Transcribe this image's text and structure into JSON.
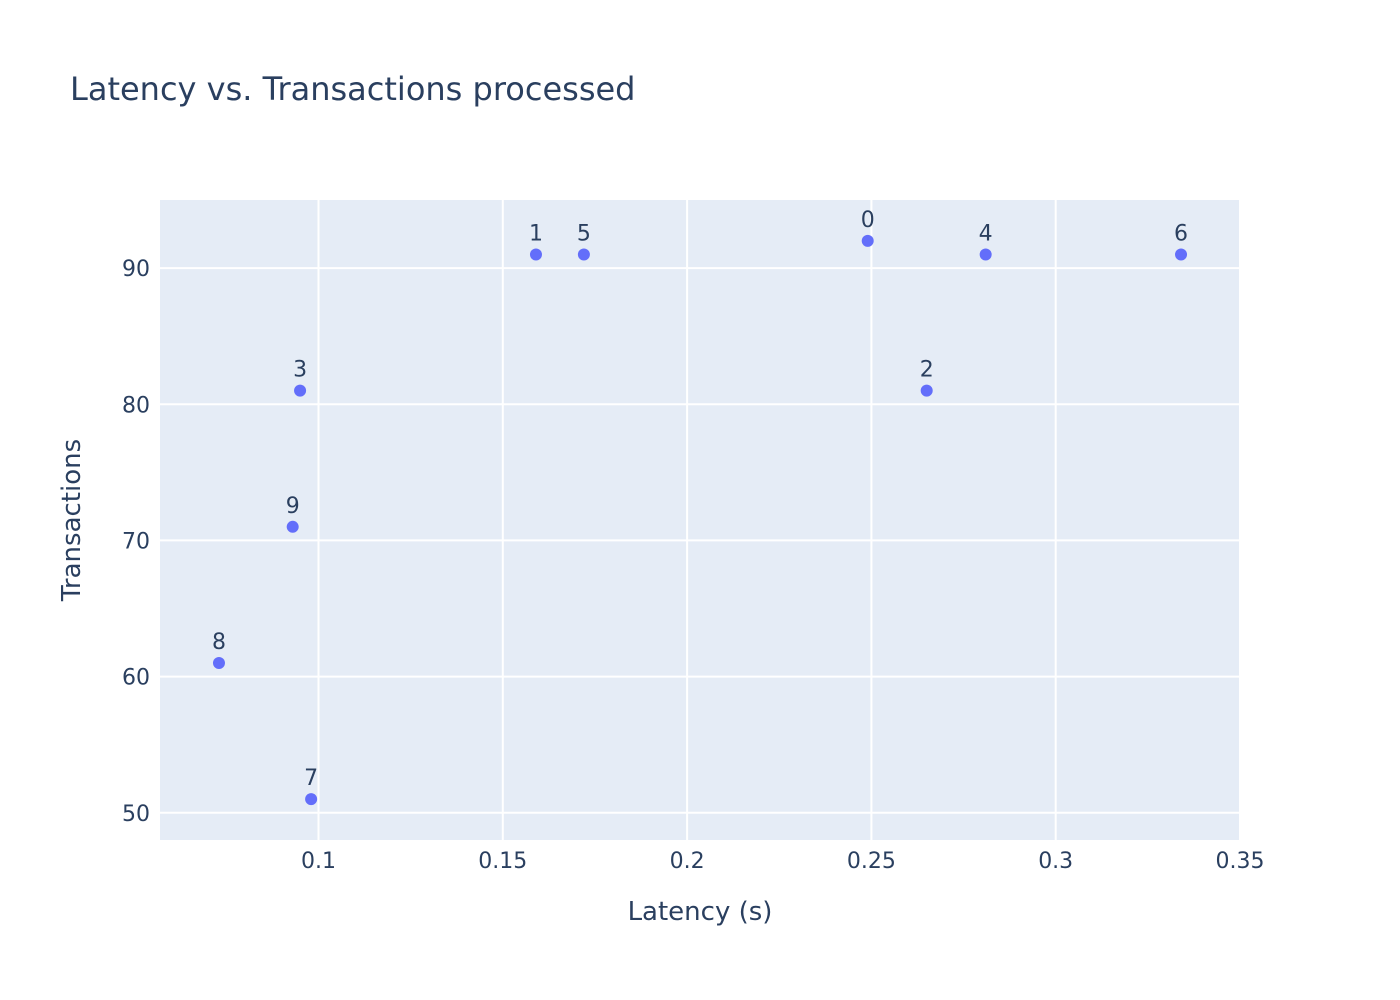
{
  "chart_data": {
    "type": "scatter",
    "title": "Latency vs. Transactions processed",
    "xlabel": "Latency (s)",
    "ylabel": "Transactions",
    "xlim": [
      0.057,
      0.35
    ],
    "ylim": [
      48,
      95
    ],
    "xticks": [
      0.1,
      0.15,
      0.2,
      0.25,
      0.3,
      0.35
    ],
    "xtick_labels": [
      "0.1",
      "0.15",
      "0.2",
      "0.25",
      "0.3",
      "0.35"
    ],
    "yticks": [
      50,
      60,
      70,
      80,
      90
    ],
    "ytick_labels": [
      "50",
      "60",
      "70",
      "80",
      "90"
    ],
    "grid": true,
    "plot_background": "#e5ecf6",
    "marker_color": "#636efa",
    "text_color": "#2a3f5f",
    "points": [
      {
        "label": "0",
        "x": 0.249,
        "y": 92
      },
      {
        "label": "1",
        "x": 0.159,
        "y": 91
      },
      {
        "label": "2",
        "x": 0.265,
        "y": 81
      },
      {
        "label": "3",
        "x": 0.095,
        "y": 81
      },
      {
        "label": "4",
        "x": 0.281,
        "y": 91
      },
      {
        "label": "5",
        "x": 0.172,
        "y": 91
      },
      {
        "label": "6",
        "x": 0.334,
        "y": 91
      },
      {
        "label": "7",
        "x": 0.098,
        "y": 51
      },
      {
        "label": "8",
        "x": 0.073,
        "y": 61
      },
      {
        "label": "9",
        "x": 0.093,
        "y": 71
      }
    ]
  }
}
